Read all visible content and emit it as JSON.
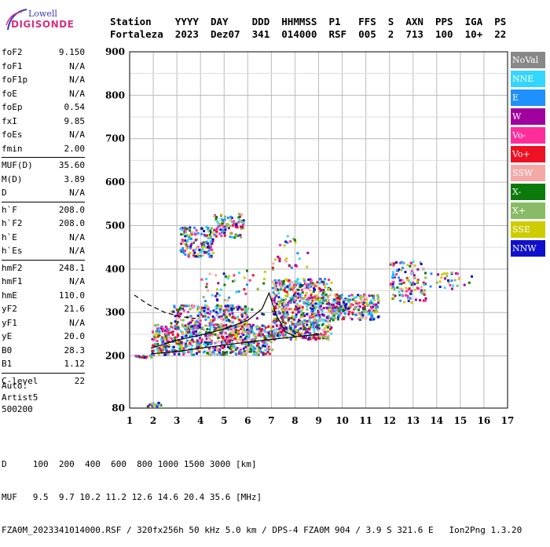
{
  "logo": {
    "brand": "Lowell",
    "product": "DIGISONDE"
  },
  "header": {
    "labels": [
      "Station",
      "YYYY",
      "DAY",
      "DDD",
      "HHMMSS",
      "P1",
      "FFS",
      "S",
      "AXN",
      "PPS",
      "IGA",
      "PS"
    ],
    "values": [
      "Fortaleza",
      "2023",
      "Dez07",
      "341",
      "014000",
      "RSF",
      "005",
      "2",
      "713",
      "100",
      "10+",
      "22"
    ]
  },
  "params": {
    "group1": [
      {
        "label": "foF2",
        "value": "9.150"
      },
      {
        "label": "foF1",
        "value": "N/A"
      },
      {
        "label": "foF1p",
        "value": "N/A"
      },
      {
        "label": "foE",
        "value": "N/A"
      },
      {
        "label": "foEp",
        "value": "0.54"
      },
      {
        "label": "fxI",
        "value": "9.85"
      },
      {
        "label": "foEs",
        "value": "N/A"
      },
      {
        "label": "fmin",
        "value": "2.00"
      }
    ],
    "group2": [
      {
        "label": "MUF(D)",
        "value": "35.60"
      },
      {
        "label": "M(D)",
        "value": "3.89"
      },
      {
        "label": "D",
        "value": "N/A"
      }
    ],
    "group3": [
      {
        "label": "h`F",
        "value": "208.0"
      },
      {
        "label": "h`F2",
        "value": "208.0"
      },
      {
        "label": "h`E",
        "value": "N/A"
      },
      {
        "label": "h`Es",
        "value": "N/A"
      }
    ],
    "group4": [
      {
        "label": "hmF2",
        "value": "248.1"
      },
      {
        "label": "hmF1",
        "value": "N/A"
      },
      {
        "label": "hmE",
        "value": "110.0"
      },
      {
        "label": "yF2",
        "value": "21.6"
      },
      {
        "label": "yF1",
        "value": "N/A"
      },
      {
        "label": "yE",
        "value": "20.0"
      },
      {
        "label": "B0",
        "value": "28.3"
      },
      {
        "label": "B1",
        "value": "1.12"
      }
    ],
    "group5": [
      {
        "label": "C-level",
        "value": "22"
      }
    ]
  },
  "auto": {
    "line1": "Auto:",
    "line2": "Artist5",
    "line3": "500200"
  },
  "legend": [
    {
      "label": "NoVal",
      "color": "#888888"
    },
    {
      "label": "NNE",
      "color": "#33d6ff"
    },
    {
      "label": "E",
      "color": "#1e90ff"
    },
    {
      "label": "W",
      "color": "#a000a0"
    },
    {
      "label": "Vo-",
      "color": "#ff2d9c"
    },
    {
      "label": "Vo+",
      "color": "#ee1122"
    },
    {
      "label": "SSW",
      "color": "#f4a8a8"
    },
    {
      "label": "X-",
      "color": "#0a7a0a"
    },
    {
      "label": "X+",
      "color": "#88bb66"
    },
    {
      "label": "SSE",
      "color": "#cccc00"
    },
    {
      "label": "NNW",
      "color": "#1010cc"
    }
  ],
  "footer": {
    "line1": "D     100  200  400  600  800 1000 1500 3000 [km]",
    "line2": "MUF   9.5  9.7 10.2 11.2 12.6 14.6 20.4 35.6 [MHz]",
    "line3": "FZA0M_2023341014000.RSF / 320fx256h 50 kHz 5.0 km / DPS-4 FZA0M 904 / 3.9 S 321.6 E   Ion2Png 1.3.20"
  },
  "chart_data": {
    "type": "scatter",
    "xlim": [
      1,
      17
    ],
    "ylim": [
      80,
      900
    ],
    "x_ticks": [
      "1",
      "2",
      "3",
      "4",
      "5",
      "6",
      "7",
      "8",
      "9",
      "10",
      "11",
      "12",
      "13",
      "14",
      "15",
      "16",
      "17"
    ],
    "y_ticks": [
      "80",
      "200",
      "300",
      "400",
      "500",
      "600",
      "700",
      "800",
      "900"
    ],
    "grid": true,
    "legend_position": "right",
    "clusters": [
      {
        "x": [
          1.9,
          7.0
        ],
        "y": [
          205,
          275
        ],
        "n": 700
      },
      {
        "x": [
          2.7,
          6.0
        ],
        "y": [
          265,
          320
        ],
        "n": 220
      },
      {
        "x": [
          7.0,
          9.5
        ],
        "y": [
          240,
          380
        ],
        "n": 650
      },
      {
        "x": [
          9.5,
          11.5
        ],
        "y": [
          285,
          345
        ],
        "n": 220
      },
      {
        "x": [
          12.0,
          13.5
        ],
        "y": [
          325,
          420
        ],
        "n": 120
      },
      {
        "x": [
          13.5,
          15.5
        ],
        "y": [
          355,
          395
        ],
        "n": 30
      },
      {
        "x": [
          3.1,
          4.5
        ],
        "y": [
          430,
          500
        ],
        "n": 160
      },
      {
        "x": [
          4.5,
          5.8
        ],
        "y": [
          475,
          530
        ],
        "n": 90
      },
      {
        "x": [
          4.0,
          6.8
        ],
        "y": [
          280,
          400
        ],
        "n": 70
      },
      {
        "x": [
          7.0,
          8.5
        ],
        "y": [
          400,
          480
        ],
        "n": 30
      },
      {
        "x": [
          1.7,
          2.3
        ],
        "y": [
          85,
          95
        ],
        "n": 25
      },
      {
        "x": [
          1.2,
          1.9
        ],
        "y": [
          198,
          204
        ],
        "n": 20
      }
    ],
    "trace_lower": [
      [
        1.9,
        205
      ],
      [
        3.0,
        210
      ],
      [
        4.0,
        218
      ],
      [
        5.0,
        225
      ],
      [
        6.0,
        232
      ],
      [
        7.0,
        238
      ],
      [
        8.0,
        244
      ],
      [
        9.0,
        250
      ]
    ],
    "trace_profile": [
      [
        1.9,
        218
      ],
      [
        3.0,
        236
      ],
      [
        4.0,
        248
      ],
      [
        5.0,
        262
      ],
      [
        6.0,
        282
      ],
      [
        6.6,
        308
      ],
      [
        6.9,
        345
      ],
      [
        7.2,
        295
      ],
      [
        7.6,
        255
      ],
      [
        8.0,
        245
      ]
    ],
    "trace_dashed": [
      [
        1.2,
        340
      ],
      [
        1.8,
        318
      ],
      [
        2.5,
        300
      ],
      [
        3.2,
        290
      ],
      [
        3.8,
        286
      ]
    ]
  }
}
